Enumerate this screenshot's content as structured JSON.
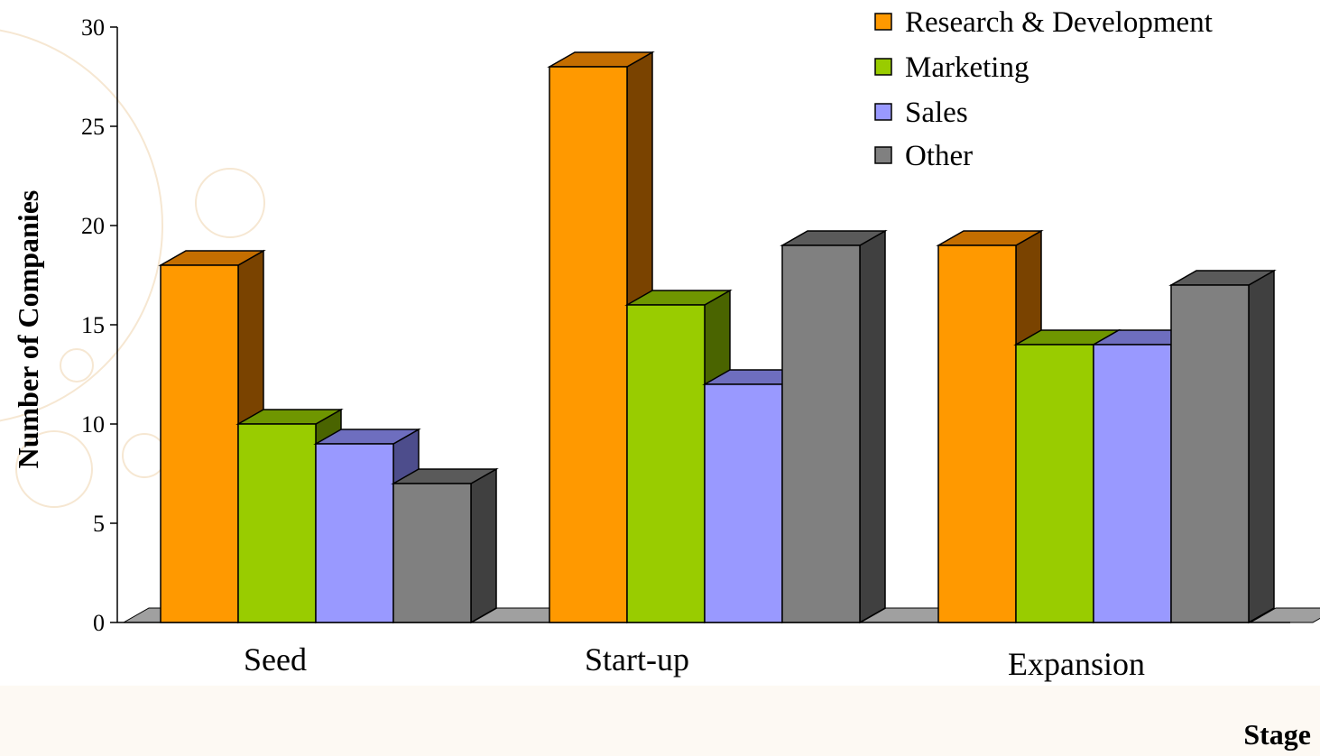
{
  "chart_data": {
    "type": "bar",
    "style": "3d-clustered-column",
    "categories": [
      "Seed",
      "Start-up",
      "Expansion"
    ],
    "series": [
      {
        "name": "Research & Development",
        "values": [
          18,
          28,
          19
        ],
        "color": "#ff9900",
        "top": "#c46e00",
        "side": "#7a4300"
      },
      {
        "name": "Marketing",
        "values": [
          10,
          16,
          14
        ],
        "color": "#99cc00",
        "top": "#6f9600",
        "side": "#4a6400"
      },
      {
        "name": "Sales",
        "values": [
          9,
          12,
          14
        ],
        "color": "#9999ff",
        "top": "#6e6ebf",
        "side": "#4d4d8c"
      },
      {
        "name": "Other",
        "values": [
          7,
          19,
          17
        ],
        "color": "#808080",
        "top": "#5a5a5a",
        "side": "#404040"
      }
    ],
    "xlabel": "Stage",
    "ylabel": "Number of Companies",
    "ylim": [
      0,
      30
    ],
    "yticks": [
      0,
      5,
      10,
      15,
      20,
      25,
      30
    ],
    "grid": false,
    "legend_position": "top-right",
    "floor_color": "#a0a0a0"
  }
}
